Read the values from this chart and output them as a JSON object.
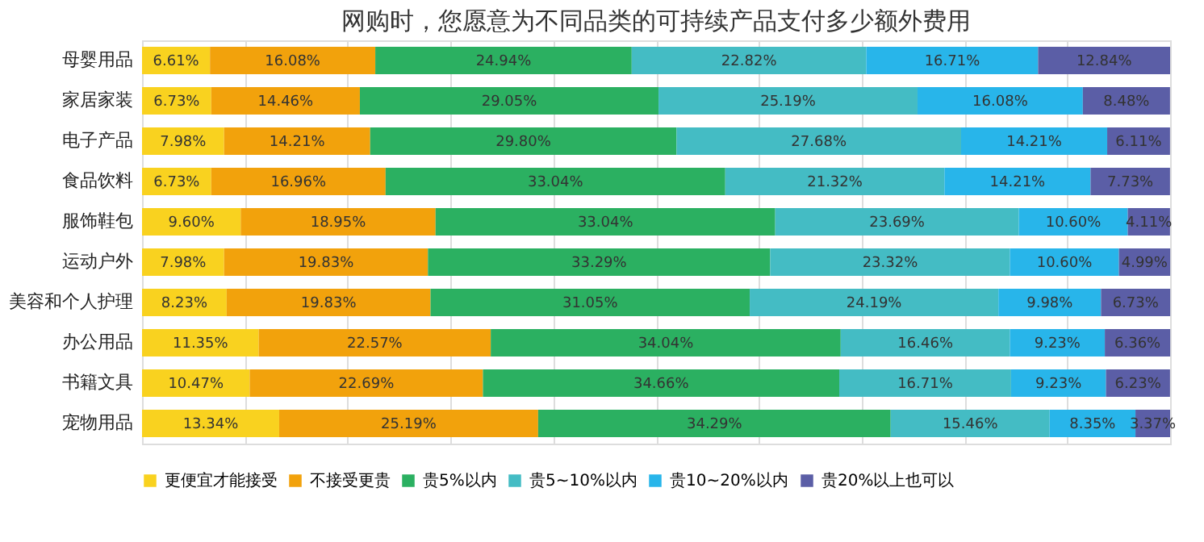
{
  "chart_data": {
    "type": "bar",
    "orientation": "horizontal",
    "stacked": true,
    "title": "网购时，您愿意为不同品类的可持续产品支付多少额外费用",
    "categories": [
      "母婴用品",
      "家居家装",
      "电子产品",
      "食品饮料",
      "服饰鞋包",
      "运动户外",
      "美容和个人护理",
      "办公用品",
      "书籍文具",
      "宠物用品"
    ],
    "xlim": [
      0,
      100
    ],
    "xticks": [
      {
        "value": 0,
        "label": null
      },
      {
        "value": 10,
        "label": null
      },
      {
        "value": 20,
        "label": null
      },
      {
        "value": 30,
        "label": null
      },
      {
        "value": 40,
        "label": null
      },
      {
        "value": 50,
        "label": null
      },
      {
        "value": 60,
        "label": null
      },
      {
        "value": 70,
        "label": null
      },
      {
        "value": 80,
        "label": null
      },
      {
        "value": 90,
        "label": null
      },
      {
        "value": 100,
        "label": null
      }
    ],
    "tick_labels": "y",
    "grid": "x",
    "legend": "bottom",
    "series": [
      {
        "name": "更便宜才能接受",
        "color": "#f9d21f",
        "values": [
          6.61,
          6.73,
          7.98,
          6.73,
          9.6,
          7.98,
          8.23,
          11.35,
          10.47,
          13.34
        ],
        "value_labels": [
          "6.61%",
          "6.73%",
          "7.98%",
          "6.73%",
          "9.60%",
          "7.98%",
          "8.23%",
          "11.35%",
          "10.47%",
          "13.34%"
        ]
      },
      {
        "name": "不接受更贵",
        "color": "#f2a20c",
        "values": [
          16.08,
          14.46,
          14.21,
          16.96,
          18.95,
          19.83,
          19.83,
          22.57,
          22.69,
          25.19
        ],
        "value_labels": [
          "16.08%",
          "14.46%",
          "14.21%",
          "16.96%",
          "18.95%",
          "19.83%",
          "19.83%",
          "22.57%",
          "22.69%",
          "25.19%"
        ]
      },
      {
        "name": "贵5%以内",
        "color": "#2bb061",
        "values": [
          24.94,
          29.05,
          29.8,
          33.04,
          33.04,
          33.29,
          31.05,
          34.04,
          34.66,
          34.29
        ],
        "value_labels": [
          "24.94%",
          "29.05%",
          "29.80%",
          "33.04%",
          "33.04%",
          "33.29%",
          "31.05%",
          "34.04%",
          "34.66%",
          "34.29%"
        ]
      },
      {
        "name": "贵5~10%以内",
        "color": "#44bcc4",
        "values": [
          22.82,
          25.19,
          27.68,
          21.32,
          23.69,
          23.32,
          24.19,
          16.46,
          16.71,
          15.46
        ],
        "value_labels": [
          "22.82%",
          "25.19%",
          "27.68%",
          "21.32%",
          "23.69%",
          "23.32%",
          "24.19%",
          "16.46%",
          "16.71%",
          "15.46%"
        ]
      },
      {
        "name": "贵10~20%以内",
        "color": "#28b5ea",
        "values": [
          16.71,
          16.08,
          14.21,
          14.21,
          10.6,
          10.6,
          9.98,
          9.23,
          9.23,
          8.35
        ],
        "value_labels": [
          "16.71%",
          "16.08%",
          "14.21%",
          "14.21%",
          "10.60%",
          "10.60%",
          "9.98%",
          "9.23%",
          "9.23%",
          "8.35%"
        ]
      },
      {
        "name": "贵20%以上也可以",
        "color": "#5b5ea6",
        "values": [
          12.84,
          8.48,
          6.11,
          7.73,
          4.11,
          4.99,
          6.73,
          6.36,
          6.23,
          3.37
        ],
        "value_labels": [
          "12.84%",
          "8.48%",
          "6.11%",
          "7.73%",
          "4.11%",
          "4.99%",
          "6.73%",
          "6.36%",
          "6.23%",
          "3.37%"
        ]
      }
    ]
  }
}
